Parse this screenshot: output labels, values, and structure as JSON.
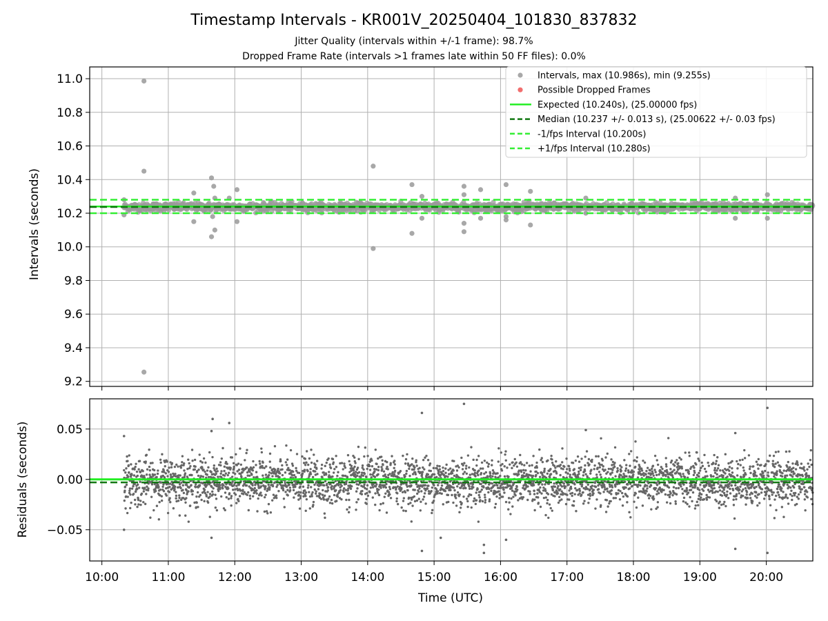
{
  "title": "Timestamp Intervals - KR001V_20250404_101830_837832",
  "subtitle_1": "Jitter Quality (intervals within +/-1 frame): 98.7%",
  "subtitle_2": "Dropped Frame Rate (intervals >1 frames late within 50 FF files): 0.0%",
  "colors": {
    "intervals": "#999999",
    "dropped": "#ee5555",
    "expected": "#22ee22",
    "median": "#117711",
    "fps_band": "#33ee33",
    "residuals": "#666666",
    "grid": "#b0b0b0"
  },
  "chart_data": [
    {
      "type": "scatter",
      "xlabel": "",
      "ylabel": "Intervals (seconds)",
      "xlim": [
        "09:49",
        "20:42"
      ],
      "ylim": [
        9.17,
        11.07
      ],
      "yticks": [
        "9.2",
        "9.4",
        "9.6",
        "9.8",
        "10.0",
        "10.2",
        "10.4",
        "10.6",
        "10.8",
        "11.0"
      ],
      "grid": true,
      "legend_position": "top-right",
      "legend": [
        "Intervals, max (10.986s), min (9.255s)",
        "Possible Dropped Frames",
        "Expected (10.240s), (25.00000 fps)",
        "Median (10.237 +/- 0.013 s), (25.00622 +/- 0.03 fps)",
        "-1/fps Interval (10.200s)",
        "+1/fps Interval (10.280s)"
      ],
      "reference_lines": {
        "expected": 10.24,
        "median": 10.237,
        "minus_one_fps": 10.2,
        "plus_one_fps": 10.28
      },
      "series": [
        {
          "name": "Intervals, max (10.986s), min (9.255s)",
          "outliers": [
            {
              "x": "10:38",
              "y": 10.986
            },
            {
              "x": "10:38",
              "y": 10.45
            },
            {
              "x": "10:38",
              "y": 9.255
            },
            {
              "x": "10:20",
              "y": 10.28
            },
            {
              "x": "10:20",
              "y": 10.19
            },
            {
              "x": "11:23",
              "y": 10.32
            },
            {
              "x": "11:23",
              "y": 10.15
            },
            {
              "x": "11:39",
              "y": 10.41
            },
            {
              "x": "11:41",
              "y": 10.36
            },
            {
              "x": "11:42",
              "y": 10.29
            },
            {
              "x": "11:40",
              "y": 10.18
            },
            {
              "x": "11:42",
              "y": 10.1
            },
            {
              "x": "11:39",
              "y": 10.06
            },
            {
              "x": "11:55",
              "y": 10.29
            },
            {
              "x": "12:02",
              "y": 10.34
            },
            {
              "x": "12:02",
              "y": 10.15
            },
            {
              "x": "14:05",
              "y": 10.48
            },
            {
              "x": "14:05",
              "y": 9.99
            },
            {
              "x": "14:40",
              "y": 10.37
            },
            {
              "x": "14:40",
              "y": 10.08
            },
            {
              "x": "14:49",
              "y": 10.3
            },
            {
              "x": "14:49",
              "y": 10.17
            },
            {
              "x": "15:27",
              "y": 10.36
            },
            {
              "x": "15:27",
              "y": 10.31
            },
            {
              "x": "15:27",
              "y": 10.14
            },
            {
              "x": "15:27",
              "y": 10.09
            },
            {
              "x": "15:42",
              "y": 10.34
            },
            {
              "x": "15:42",
              "y": 10.17
            },
            {
              "x": "16:05",
              "y": 10.37
            },
            {
              "x": "16:05",
              "y": 10.18
            },
            {
              "x": "16:05",
              "y": 10.16
            },
            {
              "x": "16:27",
              "y": 10.33
            },
            {
              "x": "16:27",
              "y": 10.13
            },
            {
              "x": "17:17",
              "y": 10.29
            },
            {
              "x": "17:17",
              "y": 10.2
            },
            {
              "x": "19:32",
              "y": 10.29
            },
            {
              "x": "19:32",
              "y": 10.17
            },
            {
              "x": "20:01",
              "y": 10.31
            },
            {
              "x": "20:01",
              "y": 10.17
            }
          ]
        },
        {
          "name": "Possible Dropped Frames",
          "points": []
        }
      ]
    },
    {
      "type": "scatter",
      "xlabel": "Time (UTC)",
      "ylabel": "Residuals (seconds)",
      "xlim": [
        "09:49",
        "20:42"
      ],
      "ylim": [
        -0.081,
        0.08
      ],
      "yticks": [
        "−0.05",
        "0.00",
        "0.05"
      ],
      "xticks": [
        "10:00",
        "11:00",
        "12:00",
        "13:00",
        "14:00",
        "15:00",
        "16:00",
        "17:00",
        "18:00",
        "19:00",
        "20:00"
      ],
      "grid": true,
      "reference_lines": {
        "zero": 0.0,
        "median_offset": -0.003
      },
      "residual_spread_sd": 0.012,
      "outliers": [
        {
          "x": "10:20",
          "y": 0.043
        },
        {
          "x": "10:20",
          "y": -0.05
        },
        {
          "x": "11:40",
          "y": 0.06
        },
        {
          "x": "11:39",
          "y": 0.048
        },
        {
          "x": "11:39",
          "y": -0.058
        },
        {
          "x": "11:55",
          "y": 0.056
        },
        {
          "x": "14:49",
          "y": 0.066
        },
        {
          "x": "14:49",
          "y": -0.071
        },
        {
          "x": "15:27",
          "y": 0.075
        },
        {
          "x": "15:06",
          "y": -0.058
        },
        {
          "x": "15:45",
          "y": -0.065
        },
        {
          "x": "15:45",
          "y": -0.073
        },
        {
          "x": "16:05",
          "y": -0.06
        },
        {
          "x": "17:17",
          "y": 0.049
        },
        {
          "x": "19:32",
          "y": 0.046
        },
        {
          "x": "19:32",
          "y": -0.069
        },
        {
          "x": "20:01",
          "y": 0.071
        },
        {
          "x": "20:01",
          "y": -0.073
        }
      ]
    }
  ]
}
